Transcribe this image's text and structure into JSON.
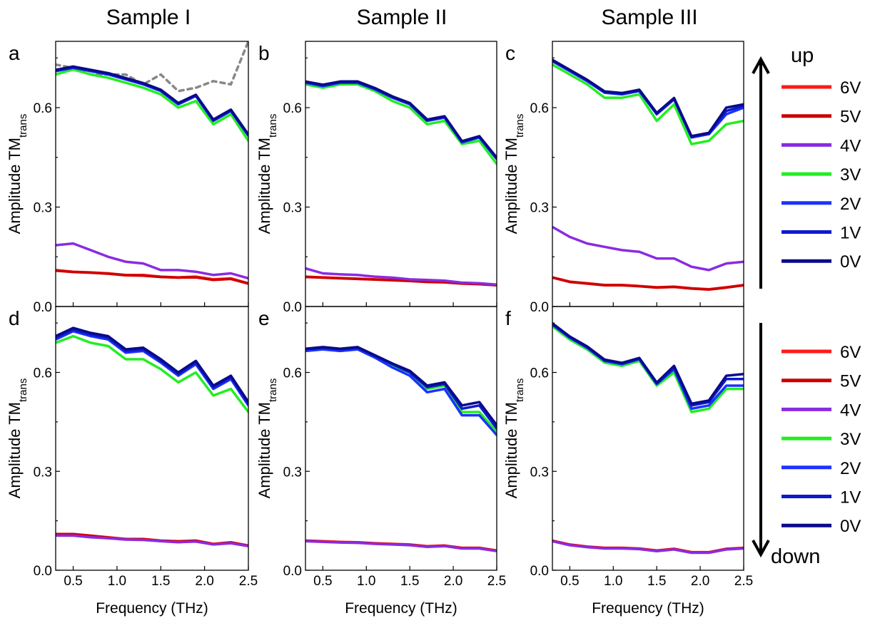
{
  "columns": [
    "Sample I",
    "Sample II",
    "Sample III"
  ],
  "y_axis_label": "Amplitude TM",
  "y_axis_subscript": "trans",
  "x_axis_label": "Frequency (THz)",
  "legend_top": {
    "direction": "up",
    "entries": [
      {
        "label": "6V",
        "color": "#ff1a1a"
      },
      {
        "label": "5V",
        "color": "#cc0000"
      },
      {
        "label": "4V",
        "color": "#8a2be2"
      },
      {
        "label": "3V",
        "color": "#22ee22"
      },
      {
        "label": "2V",
        "color": "#1a33ff"
      },
      {
        "label": "1V",
        "color": "#0d1acc"
      },
      {
        "label": "0V",
        "color": "#0a0a8a"
      }
    ]
  },
  "legend_bottom": {
    "direction": "down",
    "entries": [
      {
        "label": "6V",
        "color": "#ff1a1a"
      },
      {
        "label": "5V",
        "color": "#cc0000"
      },
      {
        "label": "4V",
        "color": "#8a2be2"
      },
      {
        "label": "3V",
        "color": "#22ee22"
      },
      {
        "label": "2V",
        "color": "#1a33ff"
      },
      {
        "label": "1V",
        "color": "#0d1acc"
      },
      {
        "label": "0V",
        "color": "#0a0a8a"
      }
    ]
  },
  "chart_data": [
    {
      "panel": "a",
      "type": "line",
      "xlabel": "",
      "ylabel": "Amplitude TM",
      "xlim": [
        0.3,
        2.5
      ],
      "ylim": [
        0.0,
        0.8
      ],
      "xticks": [
        "0.5",
        "1.0",
        "1.5",
        "2.0",
        "2.5"
      ],
      "yticks": [
        "0.0",
        "0.3",
        "0.6"
      ],
      "x": [
        0.3,
        0.5,
        0.7,
        0.9,
        1.1,
        1.3,
        1.5,
        1.7,
        1.9,
        2.1,
        2.3,
        2.5
      ],
      "series": [
        {
          "color": "#888888",
          "dashed": true,
          "values": [
            0.73,
            0.72,
            0.7,
            0.7,
            0.7,
            0.67,
            0.7,
            0.65,
            0.66,
            0.68,
            0.67,
            0.8
          ]
        },
        {
          "color": "#ff1a1a",
          "values": [
            0.11,
            0.105,
            0.103,
            0.1,
            0.095,
            0.095,
            0.09,
            0.088,
            0.09,
            0.082,
            0.085,
            0.07
          ]
        },
        {
          "color": "#cc0000",
          "values": [
            0.108,
            0.104,
            0.102,
            0.099,
            0.094,
            0.093,
            0.089,
            0.087,
            0.088,
            0.08,
            0.083,
            0.069
          ]
        },
        {
          "color": "#8a2be2",
          "values": [
            0.185,
            0.19,
            0.17,
            0.15,
            0.135,
            0.13,
            0.11,
            0.11,
            0.105,
            0.095,
            0.1,
            0.085
          ]
        },
        {
          "color": "#22ee22",
          "values": [
            0.7,
            0.715,
            0.7,
            0.69,
            0.675,
            0.66,
            0.64,
            0.6,
            0.62,
            0.55,
            0.58,
            0.5
          ]
        },
        {
          "color": "#1a33ff",
          "values": [
            0.71,
            0.72,
            0.71,
            0.7,
            0.685,
            0.67,
            0.65,
            0.61,
            0.635,
            0.56,
            0.59,
            0.515
          ]
        },
        {
          "color": "#0d1acc",
          "values": [
            0.712,
            0.722,
            0.712,
            0.702,
            0.687,
            0.672,
            0.652,
            0.612,
            0.637,
            0.562,
            0.592,
            0.517
          ]
        },
        {
          "color": "#0a0a8a",
          "values": [
            0.714,
            0.724,
            0.714,
            0.704,
            0.689,
            0.674,
            0.654,
            0.614,
            0.639,
            0.564,
            0.594,
            0.519
          ]
        }
      ]
    },
    {
      "panel": "b",
      "type": "line",
      "xlabel": "",
      "ylabel": "Amplitude TM",
      "xlim": [
        0.3,
        2.5
      ],
      "ylim": [
        0.0,
        0.8
      ],
      "xticks": [
        "0.5",
        "1.0",
        "1.5",
        "2.0",
        "2.5"
      ],
      "yticks": [
        "0.0",
        "0.3",
        "0.6"
      ],
      "x": [
        0.3,
        0.5,
        0.7,
        0.9,
        1.1,
        1.3,
        1.5,
        1.7,
        1.9,
        2.1,
        2.3,
        2.5
      ],
      "series": [
        {
          "color": "#ff1a1a",
          "values": [
            0.09,
            0.088,
            0.086,
            0.084,
            0.082,
            0.08,
            0.078,
            0.075,
            0.074,
            0.07,
            0.068,
            0.065
          ]
        },
        {
          "color": "#cc0000",
          "values": [
            0.089,
            0.087,
            0.085,
            0.083,
            0.081,
            0.079,
            0.077,
            0.074,
            0.073,
            0.069,
            0.067,
            0.064
          ]
        },
        {
          "color": "#8a2be2",
          "values": [
            0.115,
            0.1,
            0.097,
            0.095,
            0.09,
            0.087,
            0.082,
            0.08,
            0.078,
            0.072,
            0.07,
            0.066
          ]
        },
        {
          "color": "#22ee22",
          "values": [
            0.67,
            0.66,
            0.67,
            0.67,
            0.65,
            0.62,
            0.6,
            0.55,
            0.56,
            0.49,
            0.5,
            0.43
          ]
        },
        {
          "color": "#1a33ff",
          "values": [
            0.675,
            0.665,
            0.675,
            0.675,
            0.655,
            0.63,
            0.61,
            0.56,
            0.57,
            0.495,
            0.51,
            0.445
          ]
        },
        {
          "color": "#0d1acc",
          "values": [
            0.677,
            0.667,
            0.677,
            0.677,
            0.657,
            0.632,
            0.612,
            0.562,
            0.572,
            0.497,
            0.512,
            0.447
          ]
        },
        {
          "color": "#0a0a8a",
          "values": [
            0.679,
            0.669,
            0.679,
            0.679,
            0.659,
            0.634,
            0.614,
            0.564,
            0.574,
            0.499,
            0.514,
            0.449
          ]
        }
      ]
    },
    {
      "panel": "c",
      "type": "line",
      "xlabel": "",
      "ylabel": "Amplitude TM",
      "xlim": [
        0.3,
        2.5
      ],
      "ylim": [
        0.0,
        0.8
      ],
      "xticks": [
        "0.5",
        "1.0",
        "1.5",
        "2.0",
        "2.5"
      ],
      "yticks": [
        "0.0",
        "0.3",
        "0.6"
      ],
      "x": [
        0.3,
        0.5,
        0.7,
        0.9,
        1.1,
        1.3,
        1.5,
        1.7,
        1.9,
        2.1,
        2.3,
        2.5
      ],
      "series": [
        {
          "color": "#ff1a1a",
          "values": [
            0.088,
            0.075,
            0.07,
            0.065,
            0.065,
            0.062,
            0.058,
            0.06,
            0.055,
            0.052,
            0.058,
            0.065
          ]
        },
        {
          "color": "#cc0000",
          "values": [
            0.087,
            0.074,
            0.069,
            0.064,
            0.064,
            0.061,
            0.057,
            0.059,
            0.054,
            0.051,
            0.057,
            0.064
          ]
        },
        {
          "color": "#8a2be2",
          "values": [
            0.24,
            0.21,
            0.19,
            0.18,
            0.17,
            0.165,
            0.145,
            0.145,
            0.12,
            0.11,
            0.13,
            0.135
          ]
        },
        {
          "color": "#22ee22",
          "values": [
            0.73,
            0.7,
            0.67,
            0.63,
            0.63,
            0.64,
            0.56,
            0.61,
            0.49,
            0.5,
            0.55,
            0.56
          ]
        },
        {
          "color": "#1a33ff",
          "values": [
            0.74,
            0.71,
            0.68,
            0.645,
            0.64,
            0.65,
            0.58,
            0.625,
            0.51,
            0.52,
            0.58,
            0.6
          ]
        },
        {
          "color": "#0d1acc",
          "values": [
            0.742,
            0.712,
            0.682,
            0.647,
            0.642,
            0.652,
            0.582,
            0.627,
            0.512,
            0.522,
            0.59,
            0.605
          ]
        },
        {
          "color": "#0a0a8a",
          "values": [
            0.744,
            0.714,
            0.684,
            0.649,
            0.644,
            0.654,
            0.584,
            0.629,
            0.514,
            0.524,
            0.6,
            0.61
          ]
        }
      ]
    },
    {
      "panel": "d",
      "type": "line",
      "xlabel": "Frequency (THz)",
      "ylabel": "Amplitude TM",
      "xlim": [
        0.3,
        2.5
      ],
      "ylim": [
        0.0,
        0.8
      ],
      "xticks": [
        "0.5",
        "1.0",
        "1.5",
        "2.0",
        "2.5"
      ],
      "yticks": [
        "0.0",
        "0.3",
        "0.6"
      ],
      "x": [
        0.3,
        0.5,
        0.7,
        0.9,
        1.1,
        1.3,
        1.5,
        1.7,
        1.9,
        2.1,
        2.3,
        2.5
      ],
      "series": [
        {
          "color": "#ff1a1a",
          "values": [
            0.11,
            0.11,
            0.105,
            0.1,
            0.095,
            0.095,
            0.09,
            0.088,
            0.09,
            0.08,
            0.085,
            0.075
          ]
        },
        {
          "color": "#cc0000",
          "values": [
            0.109,
            0.109,
            0.104,
            0.099,
            0.094,
            0.094,
            0.089,
            0.087,
            0.089,
            0.079,
            0.084,
            0.074
          ]
        },
        {
          "color": "#8a2be2",
          "values": [
            0.105,
            0.105,
            0.1,
            0.097,
            0.093,
            0.092,
            0.088,
            0.085,
            0.087,
            0.078,
            0.082,
            0.073
          ]
        },
        {
          "color": "#22ee22",
          "values": [
            0.69,
            0.71,
            0.69,
            0.68,
            0.64,
            0.64,
            0.61,
            0.57,
            0.6,
            0.53,
            0.55,
            0.48
          ]
        },
        {
          "color": "#1a33ff",
          "values": [
            0.7,
            0.725,
            0.71,
            0.7,
            0.66,
            0.665,
            0.63,
            0.59,
            0.625,
            0.55,
            0.58,
            0.5
          ]
        },
        {
          "color": "#0d1acc",
          "values": [
            0.705,
            0.73,
            0.715,
            0.705,
            0.665,
            0.67,
            0.635,
            0.595,
            0.63,
            0.555,
            0.585,
            0.505
          ]
        },
        {
          "color": "#0a0a8a",
          "values": [
            0.71,
            0.735,
            0.72,
            0.71,
            0.67,
            0.675,
            0.64,
            0.6,
            0.635,
            0.56,
            0.59,
            0.51
          ]
        }
      ]
    },
    {
      "panel": "e",
      "type": "line",
      "xlabel": "Frequency (THz)",
      "ylabel": "Amplitude TM",
      "xlim": [
        0.3,
        2.5
      ],
      "ylim": [
        0.0,
        0.8
      ],
      "xticks": [
        "0.5",
        "1.0",
        "1.5",
        "2.0",
        "2.5"
      ],
      "yticks": [
        "0.0",
        "0.3",
        "0.6"
      ],
      "x": [
        0.3,
        0.5,
        0.7,
        0.9,
        1.1,
        1.3,
        1.5,
        1.7,
        1.9,
        2.1,
        2.3,
        2.5
      ],
      "series": [
        {
          "color": "#ff1a1a",
          "values": [
            0.09,
            0.088,
            0.086,
            0.085,
            0.082,
            0.08,
            0.078,
            0.073,
            0.075,
            0.068,
            0.068,
            0.06
          ]
        },
        {
          "color": "#cc0000",
          "values": [
            0.089,
            0.087,
            0.085,
            0.084,
            0.081,
            0.079,
            0.077,
            0.072,
            0.074,
            0.067,
            0.067,
            0.059
          ]
        },
        {
          "color": "#8a2be2",
          "values": [
            0.088,
            0.086,
            0.084,
            0.083,
            0.08,
            0.078,
            0.076,
            0.071,
            0.073,
            0.066,
            0.066,
            0.058
          ]
        },
        {
          "color": "#22ee22",
          "values": [
            0.665,
            0.67,
            0.665,
            0.67,
            0.645,
            0.62,
            0.6,
            0.55,
            0.56,
            0.48,
            0.48,
            0.42
          ]
        },
        {
          "color": "#1a33ff",
          "values": [
            0.665,
            0.67,
            0.665,
            0.67,
            0.645,
            0.615,
            0.59,
            0.54,
            0.55,
            0.47,
            0.47,
            0.41
          ]
        },
        {
          "color": "#0d1acc",
          "values": [
            0.67,
            0.675,
            0.67,
            0.675,
            0.65,
            0.625,
            0.6,
            0.555,
            0.565,
            0.49,
            0.5,
            0.43
          ]
        },
        {
          "color": "#0a0a8a",
          "values": [
            0.672,
            0.677,
            0.672,
            0.677,
            0.652,
            0.627,
            0.605,
            0.56,
            0.57,
            0.5,
            0.51,
            0.44
          ]
        }
      ]
    },
    {
      "panel": "f",
      "type": "line",
      "xlabel": "Frequency (THz)",
      "ylabel": "Amplitude TM",
      "xlim": [
        0.3,
        2.5
      ],
      "ylim": [
        0.0,
        0.8
      ],
      "xticks": [
        "0.5",
        "1.0",
        "1.5",
        "2.0",
        "2.5"
      ],
      "yticks": [
        "0.0",
        "0.3",
        "0.6"
      ],
      "x": [
        0.3,
        0.5,
        0.7,
        0.9,
        1.1,
        1.3,
        1.5,
        1.7,
        1.9,
        2.1,
        2.3,
        2.5
      ],
      "series": [
        {
          "color": "#ff1a1a",
          "values": [
            0.09,
            0.078,
            0.072,
            0.068,
            0.068,
            0.066,
            0.06,
            0.065,
            0.055,
            0.055,
            0.065,
            0.068
          ]
        },
        {
          "color": "#cc0000",
          "values": [
            0.089,
            0.077,
            0.071,
            0.067,
            0.067,
            0.065,
            0.059,
            0.064,
            0.054,
            0.054,
            0.064,
            0.067
          ]
        },
        {
          "color": "#8a2be2",
          "values": [
            0.088,
            0.076,
            0.07,
            0.066,
            0.066,
            0.064,
            0.058,
            0.063,
            0.053,
            0.053,
            0.063,
            0.066
          ]
        },
        {
          "color": "#22ee22",
          "values": [
            0.74,
            0.7,
            0.67,
            0.63,
            0.62,
            0.635,
            0.56,
            0.6,
            0.48,
            0.49,
            0.55,
            0.55
          ]
        },
        {
          "color": "#1a33ff",
          "values": [
            0.745,
            0.705,
            0.675,
            0.635,
            0.625,
            0.64,
            0.565,
            0.61,
            0.49,
            0.5,
            0.56,
            0.56
          ]
        },
        {
          "color": "#0d1acc",
          "values": [
            0.747,
            0.707,
            0.677,
            0.637,
            0.627,
            0.642,
            0.567,
            0.615,
            0.5,
            0.51,
            0.58,
            0.58
          ]
        },
        {
          "color": "#0a0a8a",
          "values": [
            0.749,
            0.709,
            0.679,
            0.639,
            0.629,
            0.644,
            0.569,
            0.62,
            0.505,
            0.515,
            0.59,
            0.595
          ]
        }
      ]
    }
  ]
}
